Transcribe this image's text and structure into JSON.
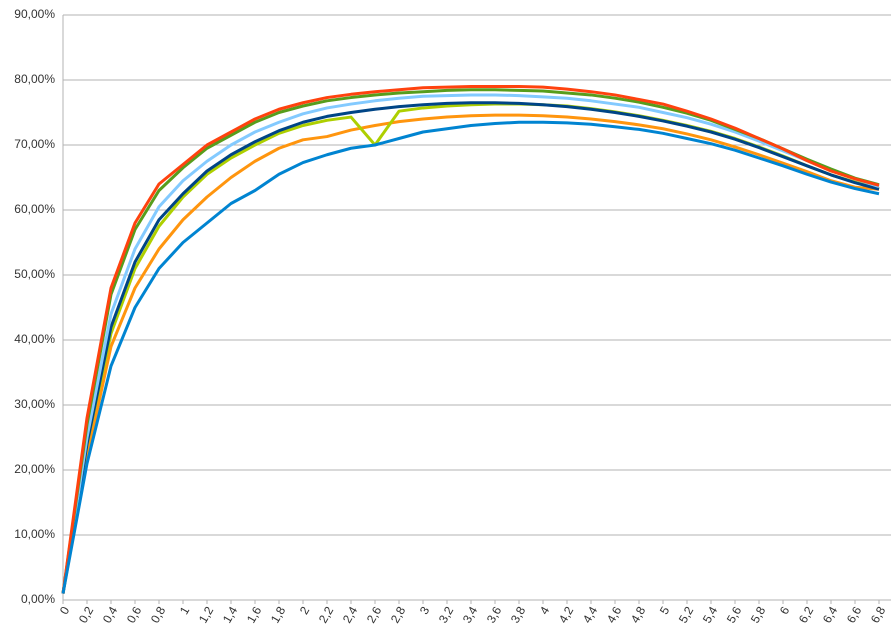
{
  "chart_data": {
    "type": "line",
    "categories": [
      "0",
      "0,2",
      "0,4",
      "0,6",
      "0,8",
      "1",
      "1,2",
      "1,4",
      "1,6",
      "1,8",
      "2",
      "2,2",
      "2,4",
      "2,6",
      "2,8",
      "3",
      "3,2",
      "3,4",
      "3,6",
      "3,8",
      "4",
      "4,2",
      "4,4",
      "4,6",
      "4,8",
      "5",
      "5,2",
      "5,4",
      "5,6",
      "5,8",
      "6",
      "6,2",
      "6,4",
      "6,6",
      "6,8"
    ],
    "ylim": [
      0,
      90
    ],
    "yticks": [
      {
        "value": 0,
        "label": "0,00%"
      },
      {
        "value": 10,
        "label": "10,00%"
      },
      {
        "value": 20,
        "label": "20,00%"
      },
      {
        "value": 30,
        "label": "30,00%"
      },
      {
        "value": 40,
        "label": "40,00%"
      },
      {
        "value": 50,
        "label": "50,00%"
      },
      {
        "value": 60,
        "label": "60,00%"
      },
      {
        "value": 70,
        "label": "70,00%"
      },
      {
        "value": 80,
        "label": "80,00%"
      },
      {
        "value": 90,
        "label": "90,00%"
      }
    ],
    "grid": true,
    "series": [
      {
        "color": "#ff950e",
        "values": [
          1,
          22,
          39,
          48,
          54,
          58.5,
          62,
          65,
          67.5,
          69.5,
          70.8,
          71.3,
          72.3,
          73,
          73.6,
          74,
          74.3,
          74.5,
          74.6,
          74.6,
          74.5,
          74.3,
          74,
          73.6,
          73.1,
          72.5,
          71.7,
          70.8,
          69.7,
          68.5,
          67.2,
          65.9,
          64.5,
          63.5,
          63.2
        ]
      },
      {
        "color": "#aecf00",
        "values": [
          1,
          24,
          41,
          51,
          57.5,
          62,
          65.5,
          68,
          70,
          71.8,
          73,
          73.8,
          74.3,
          70,
          75.2,
          75.7,
          76,
          76.2,
          76.3,
          76.3,
          76.2,
          76,
          75.6,
          75.1,
          74.5,
          73.8,
          73,
          72.1,
          71,
          69.7,
          68.3,
          66.8,
          65.4,
          64.3,
          63.3
        ]
      },
      {
        "color": "#004586",
        "values": [
          1,
          24,
          42,
          52,
          58.5,
          62.5,
          66,
          68.5,
          70.5,
          72.2,
          73.5,
          74.4,
          75,
          75.5,
          75.9,
          76.2,
          76.4,
          76.5,
          76.5,
          76.4,
          76.2,
          75.9,
          75.5,
          75,
          74.4,
          73.7,
          72.9,
          72,
          70.9,
          69.6,
          68.2,
          66.8,
          65.4,
          64.2,
          63.2
        ]
      },
      {
        "color": "#83caff",
        "values": [
          1,
          25,
          44,
          54,
          60.5,
          64.5,
          67.5,
          70,
          72,
          73.5,
          74.8,
          75.7,
          76.3,
          76.8,
          77.2,
          77.5,
          77.6,
          77.7,
          77.7,
          77.6,
          77.4,
          77.2,
          76.8,
          76.3,
          75.8,
          75,
          74.2,
          73.2,
          72,
          70.6,
          69.1,
          67.6,
          66.1,
          64.8,
          63.6
        ]
      },
      {
        "color": "#579d1c",
        "values": [
          1,
          27,
          47,
          57,
          63,
          66.5,
          69.5,
          71.5,
          73.5,
          75,
          76,
          76.8,
          77.3,
          77.7,
          78,
          78.2,
          78.4,
          78.5,
          78.5,
          78.4,
          78.3,
          78,
          77.7,
          77.2,
          76.6,
          75.8,
          74.9,
          73.8,
          72.4,
          71,
          69.4,
          67.8,
          66.3,
          64.9,
          63.9
        ]
      },
      {
        "color": "#ff420e",
        "values": [
          1,
          28,
          48,
          58,
          64,
          67,
          70,
          72,
          74,
          75.5,
          76.5,
          77.3,
          77.8,
          78.2,
          78.5,
          78.8,
          78.9,
          79,
          79,
          79,
          78.9,
          78.6,
          78.2,
          77.7,
          77,
          76.3,
          75.2,
          74,
          72.6,
          71,
          69.4,
          67.6,
          66,
          64.8,
          63.8
        ]
      },
      {
        "color": "#0084d1",
        "values": [
          1,
          21,
          36,
          45,
          51,
          55,
          58,
          61,
          63,
          65.5,
          67.3,
          68.5,
          69.5,
          70,
          71,
          72,
          72.5,
          73,
          73.3,
          73.5,
          73.5,
          73.4,
          73.2,
          72.8,
          72.4,
          71.8,
          71,
          70.2,
          69.2,
          68,
          66.8,
          65.5,
          64.3,
          63.3,
          62.5
        ]
      }
    ]
  }
}
